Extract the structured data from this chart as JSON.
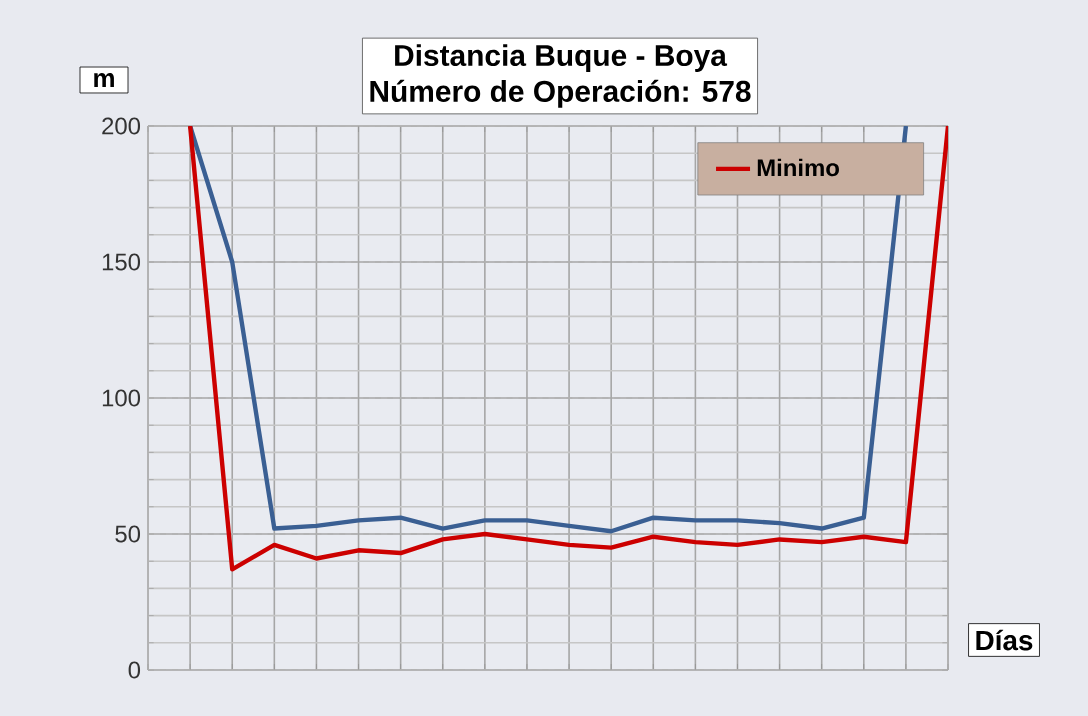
{
  "chart_data": {
    "type": "line",
    "title": "Distancia Buque - Boya",
    "subtitle": "Número de Operación:  578",
    "xlabel": "Días",
    "ylabel": "m",
    "categories": [
      null,
      null,
      null,
      null,
      null,
      null,
      null,
      null,
      null,
      null,
      null,
      null,
      null,
      null,
      null,
      null,
      null,
      null,
      null,
      null
    ],
    "series": [
      {
        "color": "#3a5f93",
        "values": [
          null,
          200,
          150,
          52,
          53,
          55,
          56,
          52,
          55,
          55,
          53,
          51,
          56,
          55,
          55,
          54,
          52,
          56,
          200,
          null
        ]
      },
      {
        "name": "Minimo",
        "color": "#cc0000",
        "values": [
          null,
          200,
          37,
          46,
          41,
          44,
          43,
          48,
          50,
          48,
          46,
          45,
          49,
          47,
          46,
          48,
          47,
          49,
          47,
          200
        ]
      }
    ],
    "ylim": [
      0,
      200
    ],
    "yticks": [
      0,
      50,
      100,
      150,
      200
    ],
    "grid": true,
    "legend": "top right"
  }
}
